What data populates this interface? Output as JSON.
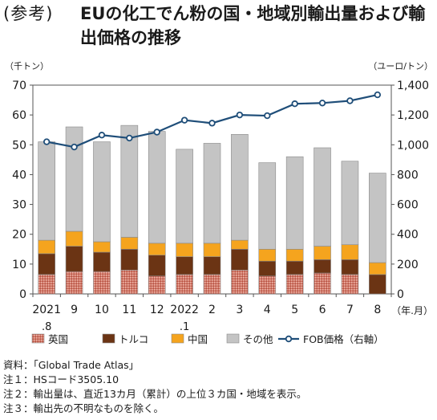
{
  "header": {
    "tag": "(参考)",
    "title": "EUの化工でん粉の国・地域別輸出量および輸出価格の推移"
  },
  "chart_data": {
    "type": "bar",
    "stacked": true,
    "left_unit": "（千トン）",
    "right_unit": "（ユーロ/トン）",
    "x_unit": "（年.月）",
    "categories": [
      "2021.8",
      "9",
      "10",
      "11",
      "12",
      "2022.1",
      "2",
      "3",
      "4",
      "5",
      "6",
      "7",
      "8"
    ],
    "x_tick_top": [
      "2021",
      "9",
      "10",
      "11",
      "12",
      "2022",
      "2",
      "3",
      "4",
      "5",
      "6",
      "7",
      "8"
    ],
    "x_tick_bottom": [
      ".8",
      "",
      "",
      "",
      "",
      ".1",
      "",
      "",
      "",
      "",
      "",
      "",
      ""
    ],
    "ylim": [
      0,
      70
    ],
    "y_ticks": [
      "0",
      "10",
      "20",
      "30",
      "40",
      "50",
      "60",
      "70"
    ],
    "y2lim": [
      0,
      1400
    ],
    "y2_ticks": [
      "0",
      "200",
      "400",
      "600",
      "800",
      "1,000",
      "1,200",
      "1,400"
    ],
    "series": [
      {
        "name": "英国",
        "color": "#d0786a",
        "values": [
          6.5,
          7.5,
          7.5,
          8,
          6,
          6.5,
          6.5,
          8,
          6,
          6.5,
          7,
          6.5,
          0
        ]
      },
      {
        "name": "トルコ",
        "color": "#6b3414",
        "values": [
          7,
          8.5,
          6.5,
          7,
          7,
          6,
          6,
          7,
          5,
          4.5,
          4.5,
          5,
          6.5
        ]
      },
      {
        "name": "中国",
        "color": "#f5a41e",
        "values": [
          4.5,
          5,
          3.5,
          4,
          4,
          4.5,
          4.5,
          3,
          4,
          4,
          4.5,
          5,
          4
        ]
      },
      {
        "name": "その他",
        "color": "#c4c4c4",
        "values": [
          33,
          35,
          33.5,
          37.5,
          37.5,
          31.5,
          33.5,
          35.5,
          29,
          31,
          33,
          28,
          30
        ]
      }
    ],
    "line": {
      "name": "FOB価格（右軸）",
      "color": "#1f4e79",
      "values": [
        1020,
        985,
        1065,
        1045,
        1085,
        1165,
        1145,
        1200,
        1195,
        1275,
        1280,
        1295,
        1335
      ]
    },
    "legend_position": "bottom",
    "grid": false
  },
  "notes": [
    "資料：「Global Trade Atlas」",
    "注１：HSコード3505.10",
    "注２：輸出量は、直近13カ月（累計）の上位３カ国・地域を表示。",
    "注３：輸出先の不明なものを除く。"
  ]
}
